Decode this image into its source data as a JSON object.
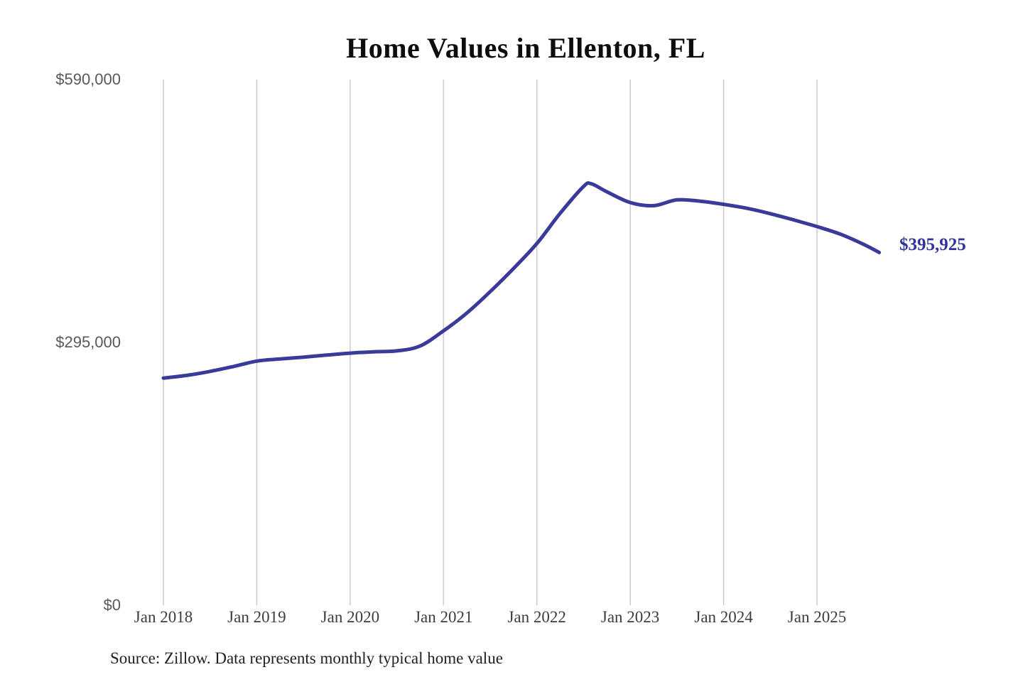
{
  "title": "Home Values in Ellenton, FL",
  "source_note": "Source: Zillow. Data represents monthly typical home value",
  "end_value_label": "$395,925",
  "colors": {
    "line": "#3a3a9b",
    "end_label_text": "#32329b",
    "grid": "#cccccc",
    "y_tick_text": "#595959",
    "x_tick_text": "#3d3d3d",
    "title_text": "#0d0d0d",
    "background": "#ffffff"
  },
  "y_axis": {
    "ticks": [
      {
        "label": "$590,000",
        "value": 590000
      },
      {
        "label": "$295,000",
        "value": 295000
      },
      {
        "label": "$0",
        "value": 0
      }
    ]
  },
  "x_axis": {
    "ticks": [
      "Jan 2018",
      "Jan 2019",
      "Jan 2020",
      "Jan 2021",
      "Jan 2022",
      "Jan 2023",
      "Jan 2024",
      "Jan 2025"
    ]
  },
  "chart_data": {
    "type": "line",
    "title": "Home Values in Ellenton, FL",
    "xlabel": "",
    "ylabel": "",
    "ylim": [
      0,
      590000
    ],
    "y_tick_values": [
      0,
      295000,
      590000
    ],
    "grid": "vertical-only",
    "legend": "none",
    "x_unit": "months since Jan 2018",
    "series": [
      {
        "name": "Typical home value (USD)",
        "points": [
          {
            "date": "2018-01",
            "m": 0,
            "value": 255000
          },
          {
            "date": "2018-04",
            "m": 3,
            "value": 258000
          },
          {
            "date": "2018-07",
            "m": 6,
            "value": 262500
          },
          {
            "date": "2018-10",
            "m": 9,
            "value": 268000
          },
          {
            "date": "2019-01",
            "m": 12,
            "value": 274000
          },
          {
            "date": "2019-04",
            "m": 15,
            "value": 276500
          },
          {
            "date": "2019-07",
            "m": 18,
            "value": 278500
          },
          {
            "date": "2019-10",
            "m": 21,
            "value": 280800
          },
          {
            "date": "2020-01",
            "m": 24,
            "value": 283000
          },
          {
            "date": "2020-04",
            "m": 27,
            "value": 284500
          },
          {
            "date": "2020-07",
            "m": 30,
            "value": 285500
          },
          {
            "date": "2020-10",
            "m": 33,
            "value": 291000
          },
          {
            "date": "2021-01",
            "m": 36,
            "value": 308000
          },
          {
            "date": "2021-04",
            "m": 39,
            "value": 328000
          },
          {
            "date": "2021-07",
            "m": 42,
            "value": 352000
          },
          {
            "date": "2021-10",
            "m": 45,
            "value": 378000
          },
          {
            "date": "2022-01",
            "m": 48,
            "value": 406000
          },
          {
            "date": "2022-04",
            "m": 51,
            "value": 440000
          },
          {
            "date": "2022-07",
            "m": 54,
            "value": 470000
          },
          {
            "date": "2022-08",
            "m": 55,
            "value": 473000
          },
          {
            "date": "2022-10",
            "m": 57,
            "value": 464000
          },
          {
            "date": "2023-01",
            "m": 60,
            "value": 452000
          },
          {
            "date": "2023-04",
            "m": 63,
            "value": 448500
          },
          {
            "date": "2023-07",
            "m": 66,
            "value": 455000
          },
          {
            "date": "2023-10",
            "m": 69,
            "value": 453500
          },
          {
            "date": "2024-01",
            "m": 72,
            "value": 450000
          },
          {
            "date": "2024-04",
            "m": 75,
            "value": 445500
          },
          {
            "date": "2024-07",
            "m": 78,
            "value": 439500
          },
          {
            "date": "2024-10",
            "m": 81,
            "value": 432500
          },
          {
            "date": "2025-01",
            "m": 84,
            "value": 425000
          },
          {
            "date": "2025-04",
            "m": 87,
            "value": 416500
          },
          {
            "date": "2025-07",
            "m": 90,
            "value": 405000
          },
          {
            "date": "2025-09",
            "m": 92,
            "value": 395925
          }
        ]
      }
    ],
    "annotations": [
      {
        "text": "$395,925",
        "attached_to": "last-point"
      }
    ]
  }
}
